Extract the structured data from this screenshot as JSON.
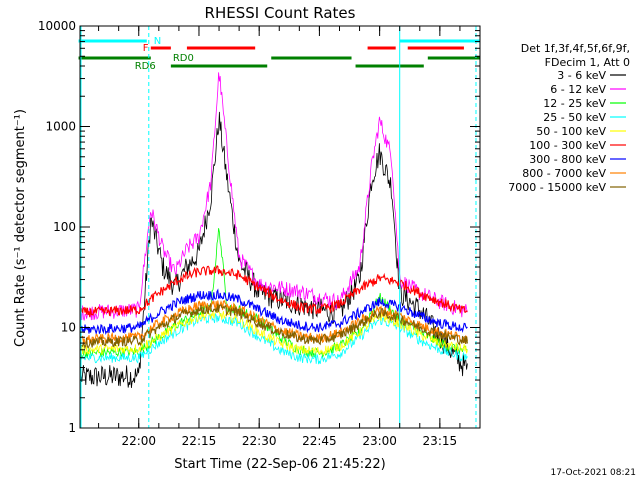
{
  "chart_data": {
    "type": "line",
    "title": "RHESSI Count Rates",
    "xlabel": "Start Time (22-Sep-06 21:45:22)",
    "ylabel": "Count Rate (s⁻¹ detector segment⁻¹)",
    "y_scale": "log",
    "ylim": [
      1,
      10000
    ],
    "xlim": [
      "21:45:22",
      "23:25:00"
    ],
    "x_ticks": [
      "22:00",
      "22:15",
      "22:30",
      "22:45",
      "23:00",
      "23:15"
    ],
    "y_ticks": [
      "1",
      "10",
      "100",
      "1000",
      "10000"
    ],
    "legend_header": [
      "Det 1f,3f,4f,5f,6f,9f,",
      "FDecim 1, Att 0"
    ],
    "legend_position": "right",
    "series": [
      {
        "name": "3 - 6 keV",
        "color": "#000000",
        "x": [
          "21:45",
          "22:00",
          "22:03",
          "22:06",
          "22:09",
          "22:12",
          "22:15",
          "22:18",
          "22:20",
          "22:22",
          "22:25",
          "22:30",
          "22:35",
          "22:40",
          "22:45",
          "22:50",
          "22:55",
          "22:58",
          "23:00",
          "23:03",
          "23:05",
          "23:10",
          "23:15",
          "23:20",
          "23:24"
        ],
        "y": [
          3.2,
          3.3,
          120,
          40,
          25,
          40,
          55,
          200,
          1200,
          300,
          45,
          22,
          19,
          17,
          15,
          14,
          30,
          300,
          550,
          250,
          22,
          15,
          8,
          4.5,
          3.2
        ]
      },
      {
        "name": "6 - 12 keV",
        "color": "#ff00ff",
        "x": [
          "21:45",
          "22:00",
          "22:03",
          "22:06",
          "22:09",
          "22:12",
          "22:15",
          "22:18",
          "22:20",
          "22:22",
          "22:25",
          "22:30",
          "22:35",
          "22:40",
          "22:45",
          "22:50",
          "22:55",
          "22:58",
          "23:00",
          "23:03",
          "23:05",
          "23:10",
          "23:15",
          "23:20",
          "23:24"
        ],
        "y": [
          14,
          15,
          150,
          60,
          35,
          60,
          80,
          280,
          3500,
          600,
          50,
          27,
          25,
          23,
          20,
          18,
          40,
          400,
          1150,
          500,
          30,
          22,
          18,
          15,
          14
        ]
      },
      {
        "name": "12 - 25 keV",
        "color": "#00ff00",
        "x": [
          "21:45",
          "22:00",
          "22:05",
          "22:10",
          "22:15",
          "22:18",
          "22:20",
          "22:22",
          "22:25",
          "22:30",
          "22:35",
          "22:40",
          "22:45",
          "22:50",
          "22:55",
          "23:00",
          "23:05",
          "23:10",
          "23:15",
          "23:20",
          "23:24"
        ],
        "y": [
          5.5,
          5.8,
          8,
          11,
          14,
          16,
          100,
          16,
          15,
          12,
          8,
          6,
          5.5,
          6.5,
          9,
          20,
          12,
          9,
          7,
          6,
          5.5
        ]
      },
      {
        "name": "25 - 50 keV",
        "color": "#00ffff",
        "x": [
          "21:45",
          "22:00",
          "22:05",
          "22:10",
          "22:15",
          "22:20",
          "22:25",
          "22:30",
          "22:35",
          "22:40",
          "22:45",
          "22:50",
          "22:55",
          "23:00",
          "23:05",
          "23:10",
          "23:15",
          "23:20",
          "23:24"
        ],
        "y": [
          5,
          5,
          7,
          9.5,
          12,
          12.5,
          11,
          8,
          6,
          5,
          4.8,
          5.5,
          8,
          12,
          10,
          7.5,
          6,
          5.2,
          5
        ]
      },
      {
        "name": "50 - 100 keV",
        "color": "#ffff00",
        "x": [
          "21:45",
          "22:00",
          "22:05",
          "22:10",
          "22:15",
          "22:20",
          "22:25",
          "22:30",
          "22:35",
          "22:40",
          "22:45",
          "22:50",
          "22:55",
          "23:00",
          "23:05",
          "23:10",
          "23:15",
          "23:20",
          "23:24"
        ],
        "y": [
          6,
          6.2,
          8,
          10.5,
          13,
          13.5,
          12,
          9,
          7,
          6,
          5.8,
          6.5,
          9,
          13,
          11,
          8.5,
          7,
          6.2,
          6
        ]
      },
      {
        "name": "100 - 300 keV",
        "color": "#ff0000",
        "x": [
          "21:45",
          "22:00",
          "22:05",
          "22:10",
          "22:15",
          "22:20",
          "22:25",
          "22:30",
          "22:35",
          "22:40",
          "22:45",
          "22:50",
          "22:55",
          "23:00",
          "23:05",
          "23:10",
          "23:15",
          "23:20",
          "23:24"
        ],
        "y": [
          14,
          15,
          22,
          30,
          36,
          37,
          33,
          25,
          19,
          16,
          15,
          17,
          24,
          31,
          28,
          22,
          18,
          15,
          14
        ]
      },
      {
        "name": "300 - 800 keV",
        "color": "#0000ff",
        "x": [
          "21:45",
          "22:00",
          "22:05",
          "22:10",
          "22:15",
          "22:20",
          "22:25",
          "22:30",
          "22:35",
          "22:40",
          "22:45",
          "22:50",
          "22:55",
          "23:00",
          "23:05",
          "23:10",
          "23:15",
          "23:20",
          "23:24"
        ],
        "y": [
          9.5,
          10,
          14,
          18,
          21,
          21,
          19,
          15,
          12,
          10.5,
          10,
          11,
          14,
          18,
          16,
          13,
          11,
          10,
          9.5
        ]
      },
      {
        "name": "800 - 7000 keV",
        "color": "#ff8000",
        "x": [
          "21:45",
          "22:00",
          "22:05",
          "22:10",
          "22:15",
          "22:20",
          "22:25",
          "22:30",
          "22:35",
          "22:40",
          "22:45",
          "22:50",
          "22:55",
          "23:00",
          "23:05",
          "23:10",
          "23:15",
          "23:20",
          "23:24"
        ],
        "y": [
          7.5,
          8,
          11,
          14,
          16.5,
          17,
          15,
          12,
          9.5,
          8.2,
          7.8,
          8.8,
          11.5,
          15,
          13,
          10.5,
          9,
          8,
          7.5
        ]
      },
      {
        "name": "7000 - 15000 keV",
        "color": "#806000",
        "x": [
          "21:45",
          "22:00",
          "22:05",
          "22:10",
          "22:15",
          "22:20",
          "22:25",
          "22:30",
          "22:35",
          "22:40",
          "22:45",
          "22:50",
          "22:55",
          "23:00",
          "23:05",
          "23:10",
          "23:15",
          "23:20",
          "23:24"
        ],
        "y": [
          7,
          7.4,
          10,
          13,
          15,
          15.5,
          14,
          11,
          9,
          7.8,
          7.4,
          8.3,
          10.8,
          14,
          12.3,
          10,
          8.5,
          7.6,
          7
        ]
      }
    ],
    "flags": {
      "labels": [
        "N",
        "F",
        "RD0",
        "RD6"
      ],
      "N": {
        "color": "#00ffff",
        "segments": [
          [
            "21:45",
            "22:02"
          ],
          [
            "23:05",
            "23:25"
          ]
        ]
      },
      "F": {
        "color": "#ff0000",
        "segments": [
          [
            "22:03",
            "22:08"
          ],
          [
            "22:12",
            "22:29"
          ],
          [
            "22:57",
            "23:04"
          ],
          [
            "23:07",
            "23:21"
          ]
        ]
      },
      "RD0": {
        "color": "#008000",
        "segments": [
          [
            "21:45",
            "22:03"
          ],
          [
            "22:33",
            "22:53"
          ],
          [
            "23:12",
            "23:25"
          ]
        ]
      },
      "RD6": {
        "color": "#008000",
        "segments": [
          [
            "22:08",
            "22:32"
          ],
          [
            "22:54",
            "23:11"
          ]
        ]
      }
    },
    "vertical_lines": {
      "solid": [
        "21:45:22",
        "23:05:00"
      ],
      "dashed": [
        "22:02:30",
        "23:24:00"
      ],
      "color": "#00ffff"
    },
    "grid": false
  },
  "footer": {
    "timestamp": "17-Oct-2021 08:21"
  }
}
